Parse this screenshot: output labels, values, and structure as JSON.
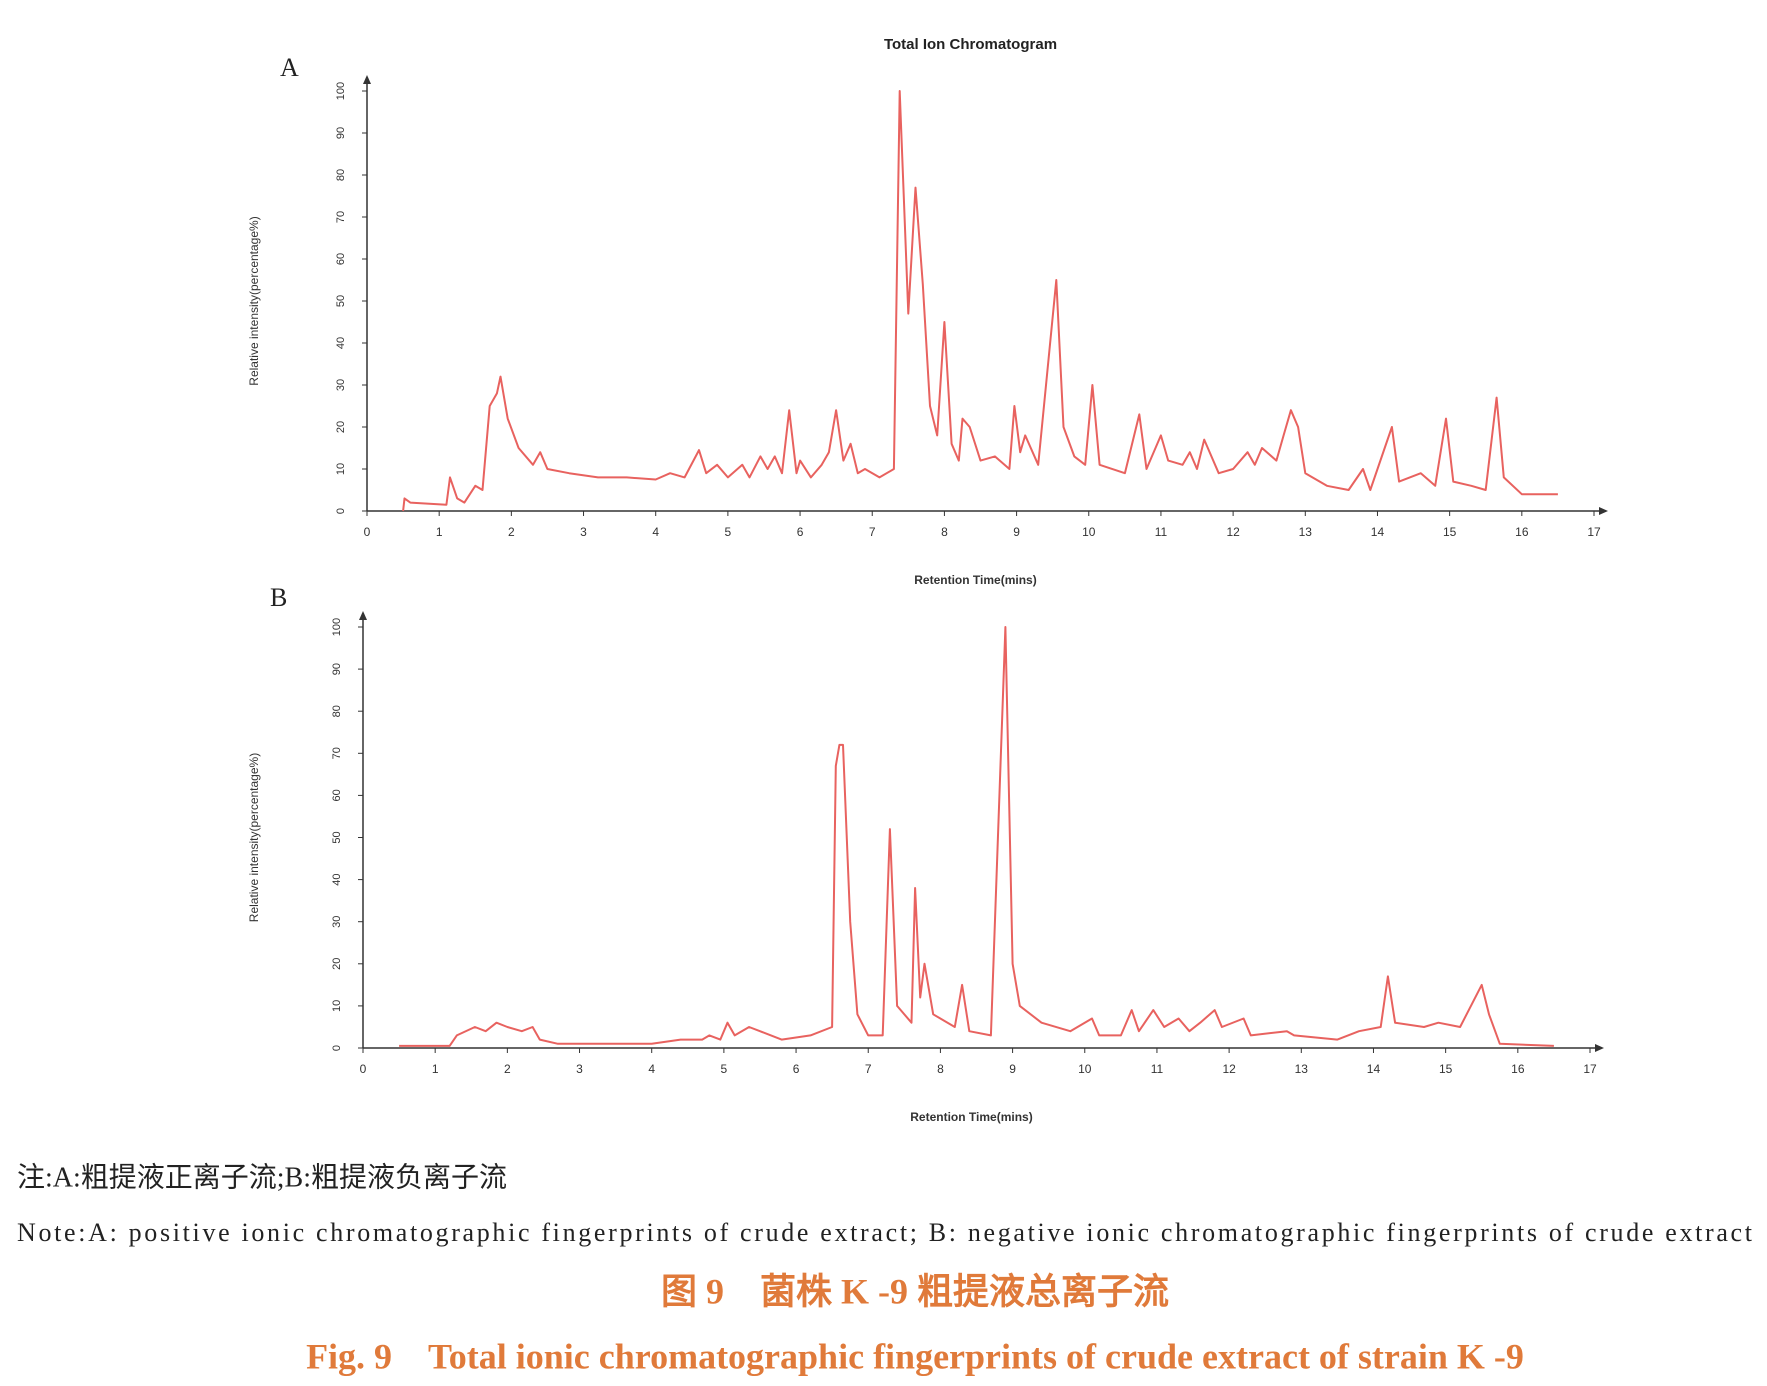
{
  "chart_data": [
    {
      "type": "line",
      "panel": "A",
      "title": "Total Ion Chromatogram",
      "x_label": "Retention Time(mins)",
      "y_label": "Relative intensity(percentage%)",
      "xlim": [
        0,
        17
      ],
      "xticks": [
        0,
        1,
        2,
        3,
        4,
        5,
        6,
        7,
        8,
        9,
        10,
        11,
        12,
        13,
        14,
        15,
        16,
        17
      ],
      "ylim": [
        0,
        100
      ],
      "yticks": [
        0,
        10,
        20,
        30,
        40,
        50,
        60,
        70,
        80,
        90,
        100
      ],
      "x": [
        0.5,
        0.52,
        0.6,
        1.1,
        1.15,
        1.25,
        1.35,
        1.5,
        1.6,
        1.7,
        1.8,
        1.85,
        1.95,
        2.1,
        2.3,
        2.4,
        2.5,
        2.8,
        3.2,
        3.6,
        4.0,
        4.2,
        4.4,
        4.6,
        4.7,
        4.85,
        5.0,
        5.2,
        5.3,
        5.45,
        5.55,
        5.65,
        5.75,
        5.85,
        5.95,
        6.0,
        6.15,
        6.3,
        6.4,
        6.5,
        6.6,
        6.7,
        6.8,
        6.9,
        7.1,
        7.3,
        7.38,
        7.5,
        7.6,
        7.7,
        7.8,
        7.9,
        8.0,
        8.1,
        8.2,
        8.25,
        8.35,
        8.5,
        8.7,
        8.9,
        8.97,
        9.05,
        9.12,
        9.3,
        9.55,
        9.65,
        9.8,
        9.95,
        10.05,
        10.15,
        10.5,
        10.7,
        10.8,
        11.0,
        11.1,
        11.3,
        11.4,
        11.5,
        11.6,
        11.8,
        12.0,
        12.2,
        12.3,
        12.4,
        12.6,
        12.7,
        12.8,
        12.9,
        13.0,
        13.3,
        13.6,
        13.8,
        13.9,
        14.2,
        14.3,
        14.6,
        14.8,
        14.95,
        15.05,
        15.3,
        15.5,
        15.65,
        15.75,
        16.0,
        16.5
      ],
      "series": [
        {
          "color": "#e8625f",
          "values": [
            0,
            3,
            2,
            1.5,
            8,
            3,
            2,
            6,
            5,
            25,
            28,
            32,
            22,
            15,
            11,
            14,
            10,
            9,
            8,
            8,
            7.5,
            9,
            8,
            14.5,
            9,
            11,
            8,
            11,
            8,
            13,
            10,
            13,
            9,
            24,
            9,
            12,
            8,
            11,
            14,
            24,
            12,
            16,
            9,
            10,
            8,
            10,
            100,
            47,
            77,
            54,
            25,
            18,
            45,
            16,
            12,
            22,
            20,
            12,
            13,
            10,
            25,
            14,
            18,
            11,
            55,
            20,
            13,
            11,
            30,
            11,
            9,
            23,
            10,
            18,
            12,
            11,
            14,
            10,
            17,
            9,
            10,
            14,
            11,
            15,
            12,
            18,
            24,
            20,
            9,
            6,
            5,
            10,
            5,
            20,
            7,
            9,
            6,
            22,
            7,
            6,
            5,
            27,
            8,
            4,
            4
          ]
        }
      ]
    },
    {
      "type": "line",
      "panel": "B",
      "x_label": "Retention Time(mins)",
      "y_label": "Relative intensity(percentage%)",
      "xlim": [
        0,
        17
      ],
      "xticks": [
        0,
        1,
        2,
        3,
        4,
        5,
        6,
        7,
        8,
        9,
        10,
        11,
        12,
        13,
        14,
        15,
        16,
        17
      ],
      "ylim": [
        0,
        100
      ],
      "yticks": [
        0,
        10,
        20,
        30,
        40,
        50,
        60,
        70,
        80,
        90,
        100
      ],
      "x": [
        0.5,
        1.2,
        1.3,
        1.55,
        1.7,
        1.85,
        2.0,
        2.2,
        2.35,
        2.45,
        2.7,
        3.5,
        4.0,
        4.4,
        4.7,
        4.8,
        4.95,
        5.05,
        5.15,
        5.35,
        5.5,
        5.8,
        6.2,
        6.5,
        6.55,
        6.6,
        6.65,
        6.75,
        6.85,
        7.0,
        7.2,
        7.3,
        7.4,
        7.6,
        7.65,
        7.72,
        7.78,
        7.9,
        8.2,
        8.3,
        8.4,
        8.7,
        8.9,
        9.0,
        9.1,
        9.4,
        9.8,
        10.1,
        10.2,
        10.5,
        10.65,
        10.75,
        10.95,
        11.1,
        11.3,
        11.45,
        11.6,
        11.8,
        11.9,
        12.2,
        12.3,
        12.8,
        12.9,
        13.5,
        13.8,
        14.1,
        14.2,
        14.3,
        14.7,
        14.9,
        15.2,
        15.5,
        15.6,
        15.75,
        16.5
      ],
      "series": [
        {
          "color": "#e8625f",
          "values": [
            0.5,
            0.5,
            3,
            5,
            4,
            6,
            5,
            4,
            5,
            2,
            1,
            1,
            1,
            2,
            2,
            3,
            2,
            6,
            3,
            5,
            4,
            2,
            3,
            5,
            67,
            72,
            72,
            30,
            8,
            3,
            3,
            52,
            10,
            6,
            38,
            12,
            20,
            8,
            5,
            15,
            4,
            3,
            100,
            20,
            10,
            6,
            4,
            7,
            3,
            3,
            9,
            4,
            9,
            5,
            7,
            4,
            6,
            9,
            5,
            7,
            3,
            4,
            3,
            2,
            4,
            5,
            17,
            6,
            5,
            6,
            5,
            15,
            8,
            1,
            0.5
          ]
        }
      ]
    }
  ],
  "caption": {
    "note_cn": "注:A:粗提液正离子流;B:粗提液负离子流",
    "note_en": "Note:A: positive ionic chromatographic fingerprints of crude extract; B: negative ionic chromatographic fingerprints of crude extract",
    "title_cn": "图 9　菌株 K -9 粗提液总离子流",
    "title_en": "Fig. 9　Total ionic chromatographic fingerprints of crude extract of strain K -9"
  }
}
